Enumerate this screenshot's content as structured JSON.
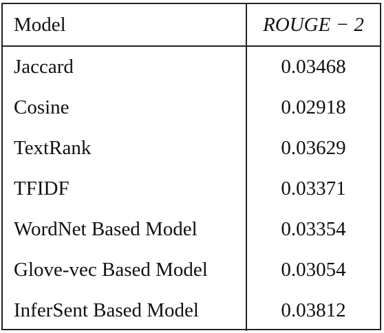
{
  "table": {
    "headers": {
      "model": "Model",
      "metric": "ROUGE − 2"
    },
    "rows": [
      {
        "model": "Jaccard",
        "score": "0.03468"
      },
      {
        "model": "Cosine",
        "score": "0.02918"
      },
      {
        "model": "TextRank",
        "score": "0.03629"
      },
      {
        "model": "TFIDF",
        "score": "0.03371"
      },
      {
        "model": "WordNet Based Model",
        "score": "0.03354"
      },
      {
        "model": "Glove-vec Based Model",
        "score": "0.03054"
      },
      {
        "model": "InferSent Based Model",
        "score": "0.03812"
      }
    ]
  }
}
